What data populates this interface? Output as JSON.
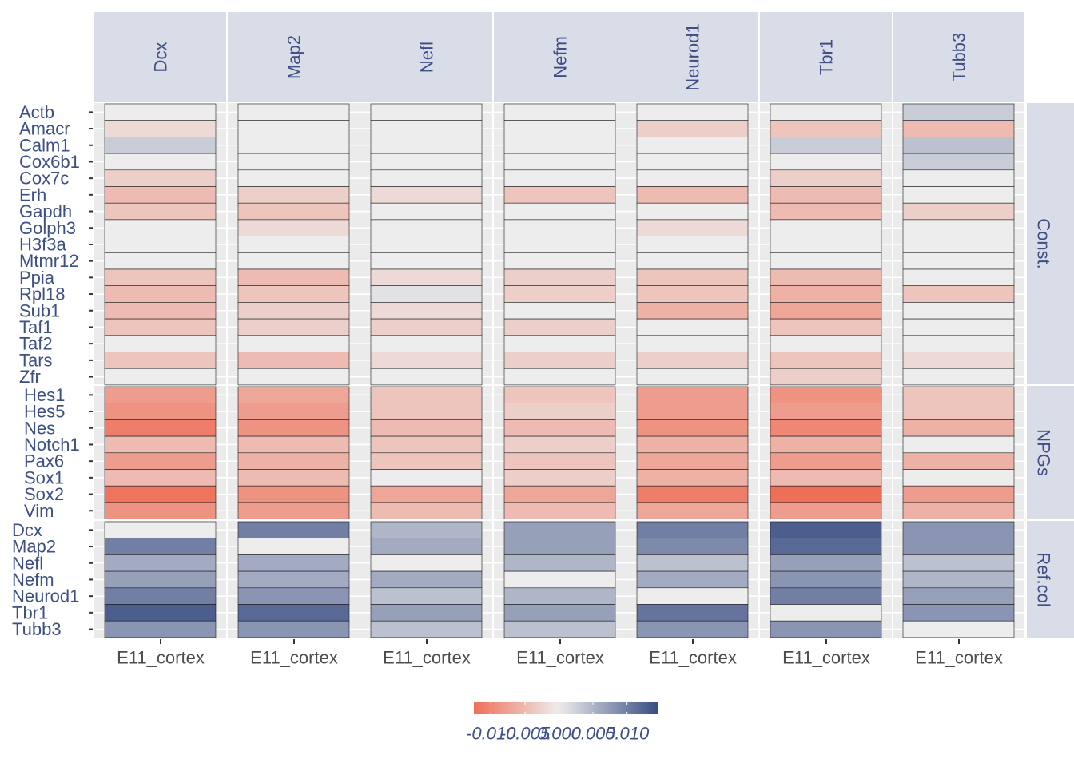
{
  "chart_data": {
    "type": "heatmap",
    "title": "",
    "xlabel": "",
    "ylabel": "",
    "columns": [
      "Dcx",
      "Map2",
      "Nefl",
      "Nefm",
      "Neurod1",
      "Tbr1",
      "Tubb3"
    ],
    "x_tick_label": "E11_cortex",
    "groups": [
      {
        "name": "Const.",
        "rows": [
          "Actb",
          "Amacr",
          "Calm1",
          "Cox6b1",
          "Cox7c",
          "Erh",
          "Gapdh",
          "Golph3",
          "H3f3a",
          "Mtmr12",
          "Ppia",
          "Rpl18",
          "Sub1",
          "Taf1",
          "Taf2",
          "Tars",
          "Zfr"
        ],
        "values": [
          [
            0.0,
            0.0,
            0.0,
            0.0,
            0.0,
            0.0,
            0.003
          ],
          [
            -0.002,
            0.0,
            0.0,
            0.0,
            -0.003,
            -0.004,
            -0.005
          ],
          [
            0.003,
            0.0,
            0.0,
            0.0,
            0.0,
            0.003,
            0.004
          ],
          [
            0.0,
            0.0,
            0.0,
            0.0,
            0.0,
            0.0,
            0.003
          ],
          [
            -0.003,
            0.0,
            0.0,
            0.0,
            0.0,
            -0.003,
            0.0
          ],
          [
            -0.005,
            -0.003,
            -0.002,
            -0.004,
            -0.005,
            -0.005,
            0.0
          ],
          [
            -0.004,
            -0.004,
            0.0,
            0.0,
            0.0,
            -0.005,
            -0.003
          ],
          [
            0.0,
            -0.002,
            0.0,
            0.0,
            -0.002,
            0.0,
            0.0
          ],
          [
            0.0,
            0.0,
            0.0,
            0.0,
            0.0,
            0.0,
            0.0
          ],
          [
            0.0,
            0.0,
            0.0,
            0.0,
            0.0,
            0.0,
            0.0
          ],
          [
            -0.004,
            -0.005,
            -0.002,
            -0.003,
            -0.004,
            -0.005,
            0.0
          ],
          [
            -0.005,
            -0.004,
            0.001,
            -0.003,
            -0.004,
            -0.006,
            -0.004
          ],
          [
            -0.005,
            -0.003,
            -0.002,
            0.0,
            -0.006,
            -0.007,
            0.0
          ],
          [
            -0.004,
            -0.003,
            -0.003,
            -0.003,
            0.0,
            -0.004,
            0.0
          ],
          [
            0.0,
            0.0,
            0.0,
            0.0,
            0.0,
            0.0,
            0.0
          ],
          [
            -0.004,
            -0.005,
            -0.002,
            -0.003,
            -0.003,
            -0.004,
            -0.002
          ],
          [
            0.0,
            0.0,
            0.0,
            0.0,
            0.0,
            -0.003,
            0.0
          ]
        ]
      },
      {
        "name": "NPGs",
        "rows": [
          "Hes1",
          "Hes5",
          "Nes",
          "Notch1",
          "Pax6",
          "Sox1",
          "Sox2",
          "Vim"
        ],
        "values": [
          [
            -0.008,
            -0.007,
            -0.004,
            -0.004,
            -0.008,
            -0.009,
            -0.004
          ],
          [
            -0.009,
            -0.008,
            -0.004,
            -0.003,
            -0.008,
            -0.008,
            -0.004
          ],
          [
            -0.011,
            -0.009,
            -0.005,
            -0.005,
            -0.009,
            -0.01,
            -0.006
          ],
          [
            -0.005,
            -0.005,
            -0.004,
            -0.003,
            -0.006,
            -0.006,
            0.0
          ],
          [
            -0.008,
            -0.006,
            -0.004,
            -0.004,
            -0.007,
            -0.008,
            -0.006
          ],
          [
            -0.005,
            -0.005,
            0.0,
            -0.003,
            -0.006,
            -0.005,
            0.0
          ],
          [
            -0.012,
            -0.009,
            -0.007,
            -0.007,
            -0.011,
            -0.013,
            -0.008
          ],
          [
            -0.009,
            -0.008,
            -0.005,
            -0.005,
            -0.007,
            -0.008,
            -0.006
          ]
        ]
      },
      {
        "name": "Ref.col",
        "rows": [
          "Dcx",
          "Map2",
          "Nefl",
          "Nefm",
          "Neurod1",
          "Tbr1",
          "Tubb3"
        ],
        "values": [
          [
            0.0,
            0.01,
            0.005,
            0.007,
            0.01,
            0.013,
            0.008
          ],
          [
            0.01,
            0.0,
            0.006,
            0.007,
            0.009,
            0.012,
            0.008
          ],
          [
            0.006,
            0.006,
            0.0,
            0.005,
            0.004,
            0.007,
            0.004
          ],
          [
            0.007,
            0.006,
            0.006,
            0.0,
            0.006,
            0.008,
            0.005
          ],
          [
            0.01,
            0.008,
            0.004,
            0.005,
            0.0,
            0.01,
            0.007
          ],
          [
            0.013,
            0.012,
            0.007,
            0.007,
            0.011,
            0.0,
            0.008
          ],
          [
            0.008,
            0.008,
            0.004,
            0.004,
            0.008,
            0.008,
            0.0
          ]
        ]
      }
    ],
    "legend": {
      "ticks": [
        "-0.010",
        "-0.005",
        "0.000",
        "0.005",
        "0.010"
      ],
      "tick_values": [
        -0.01,
        -0.005,
        0.0,
        0.005,
        0.01
      ],
      "range": [
        -0.0125,
        0.0145
      ],
      "placement": "bottom"
    },
    "colors": {
      "low": "#ee6f57",
      "mid": "#ededed",
      "high": "#384d82",
      "panel_bg": "#ebebeb",
      "strip_bg": "#d9dde8",
      "strip_text": "#3d4f85",
      "axis_text": "#3d4f85",
      "bottom_text": "#4d4d4d"
    },
    "grid": true
  }
}
